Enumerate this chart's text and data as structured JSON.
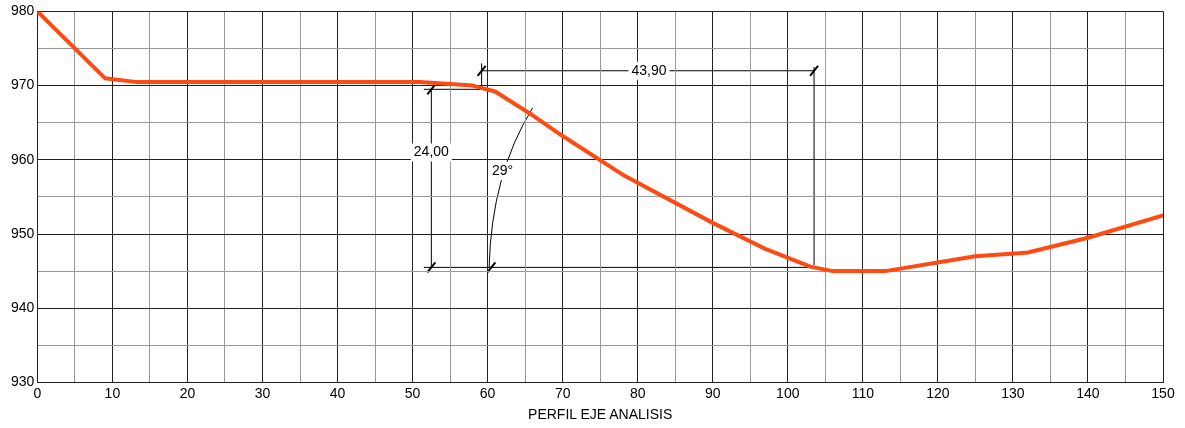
{
  "chart_data": {
    "type": "line",
    "xlabel": "PERFIL EJE ANALISIS",
    "x": [
      0,
      9,
      13,
      51,
      58,
      61,
      66,
      70,
      78,
      90,
      97,
      103,
      106,
      113,
      125,
      132,
      140,
      150
    ],
    "series": [
      {
        "color": "#ff4a12",
        "values": [
          980,
          971,
          970.5,
          970.5,
          970,
          969.2,
          966,
          963.2,
          958,
          951.5,
          948,
          945.6,
          945,
          945,
          947,
          947.5,
          949.5,
          952.5
        ]
      }
    ],
    "xlim": [
      0,
      150
    ],
    "xticks": [
      0,
      {
        "value": 5,
        "label": null
      },
      10,
      {
        "value": 15,
        "label": null
      },
      20,
      {
        "value": 25,
        "label": null
      },
      30,
      {
        "value": 35,
        "label": null
      },
      40,
      {
        "value": 45,
        "label": null
      },
      50,
      {
        "value": 55,
        "label": null
      },
      60,
      {
        "value": 65,
        "label": null
      },
      70,
      {
        "value": 75,
        "label": null
      },
      80,
      {
        "value": 85,
        "label": null
      },
      90,
      {
        "value": 95,
        "label": null
      },
      100,
      {
        "value": 105,
        "label": null
      },
      110,
      {
        "value": 115,
        "label": null
      },
      120,
      {
        "value": 125,
        "label": null
      },
      130,
      {
        "value": 135,
        "label": null
      },
      140,
      {
        "value": 145,
        "label": null
      },
      150
    ],
    "ylim": [
      930,
      980
    ],
    "yticks": [
      930,
      {
        "value": 935,
        "label": null
      },
      940,
      {
        "value": 945,
        "label": null
      },
      950,
      {
        "value": 955,
        "label": null
      },
      960,
      {
        "value": 965,
        "label": null
      },
      970,
      {
        "value": 975,
        "label": null
      },
      980
    ],
    "grid": true,
    "marker": "none",
    "line_style": "solid",
    "annotations": [
      {
        "text": "43,90",
        "x": 81.5,
        "y": 972
      },
      {
        "text": "24,00",
        "x": 52.5,
        "y": 961
      },
      {
        "text": "29°",
        "x": 62,
        "y": 958.5
      }
    ]
  }
}
